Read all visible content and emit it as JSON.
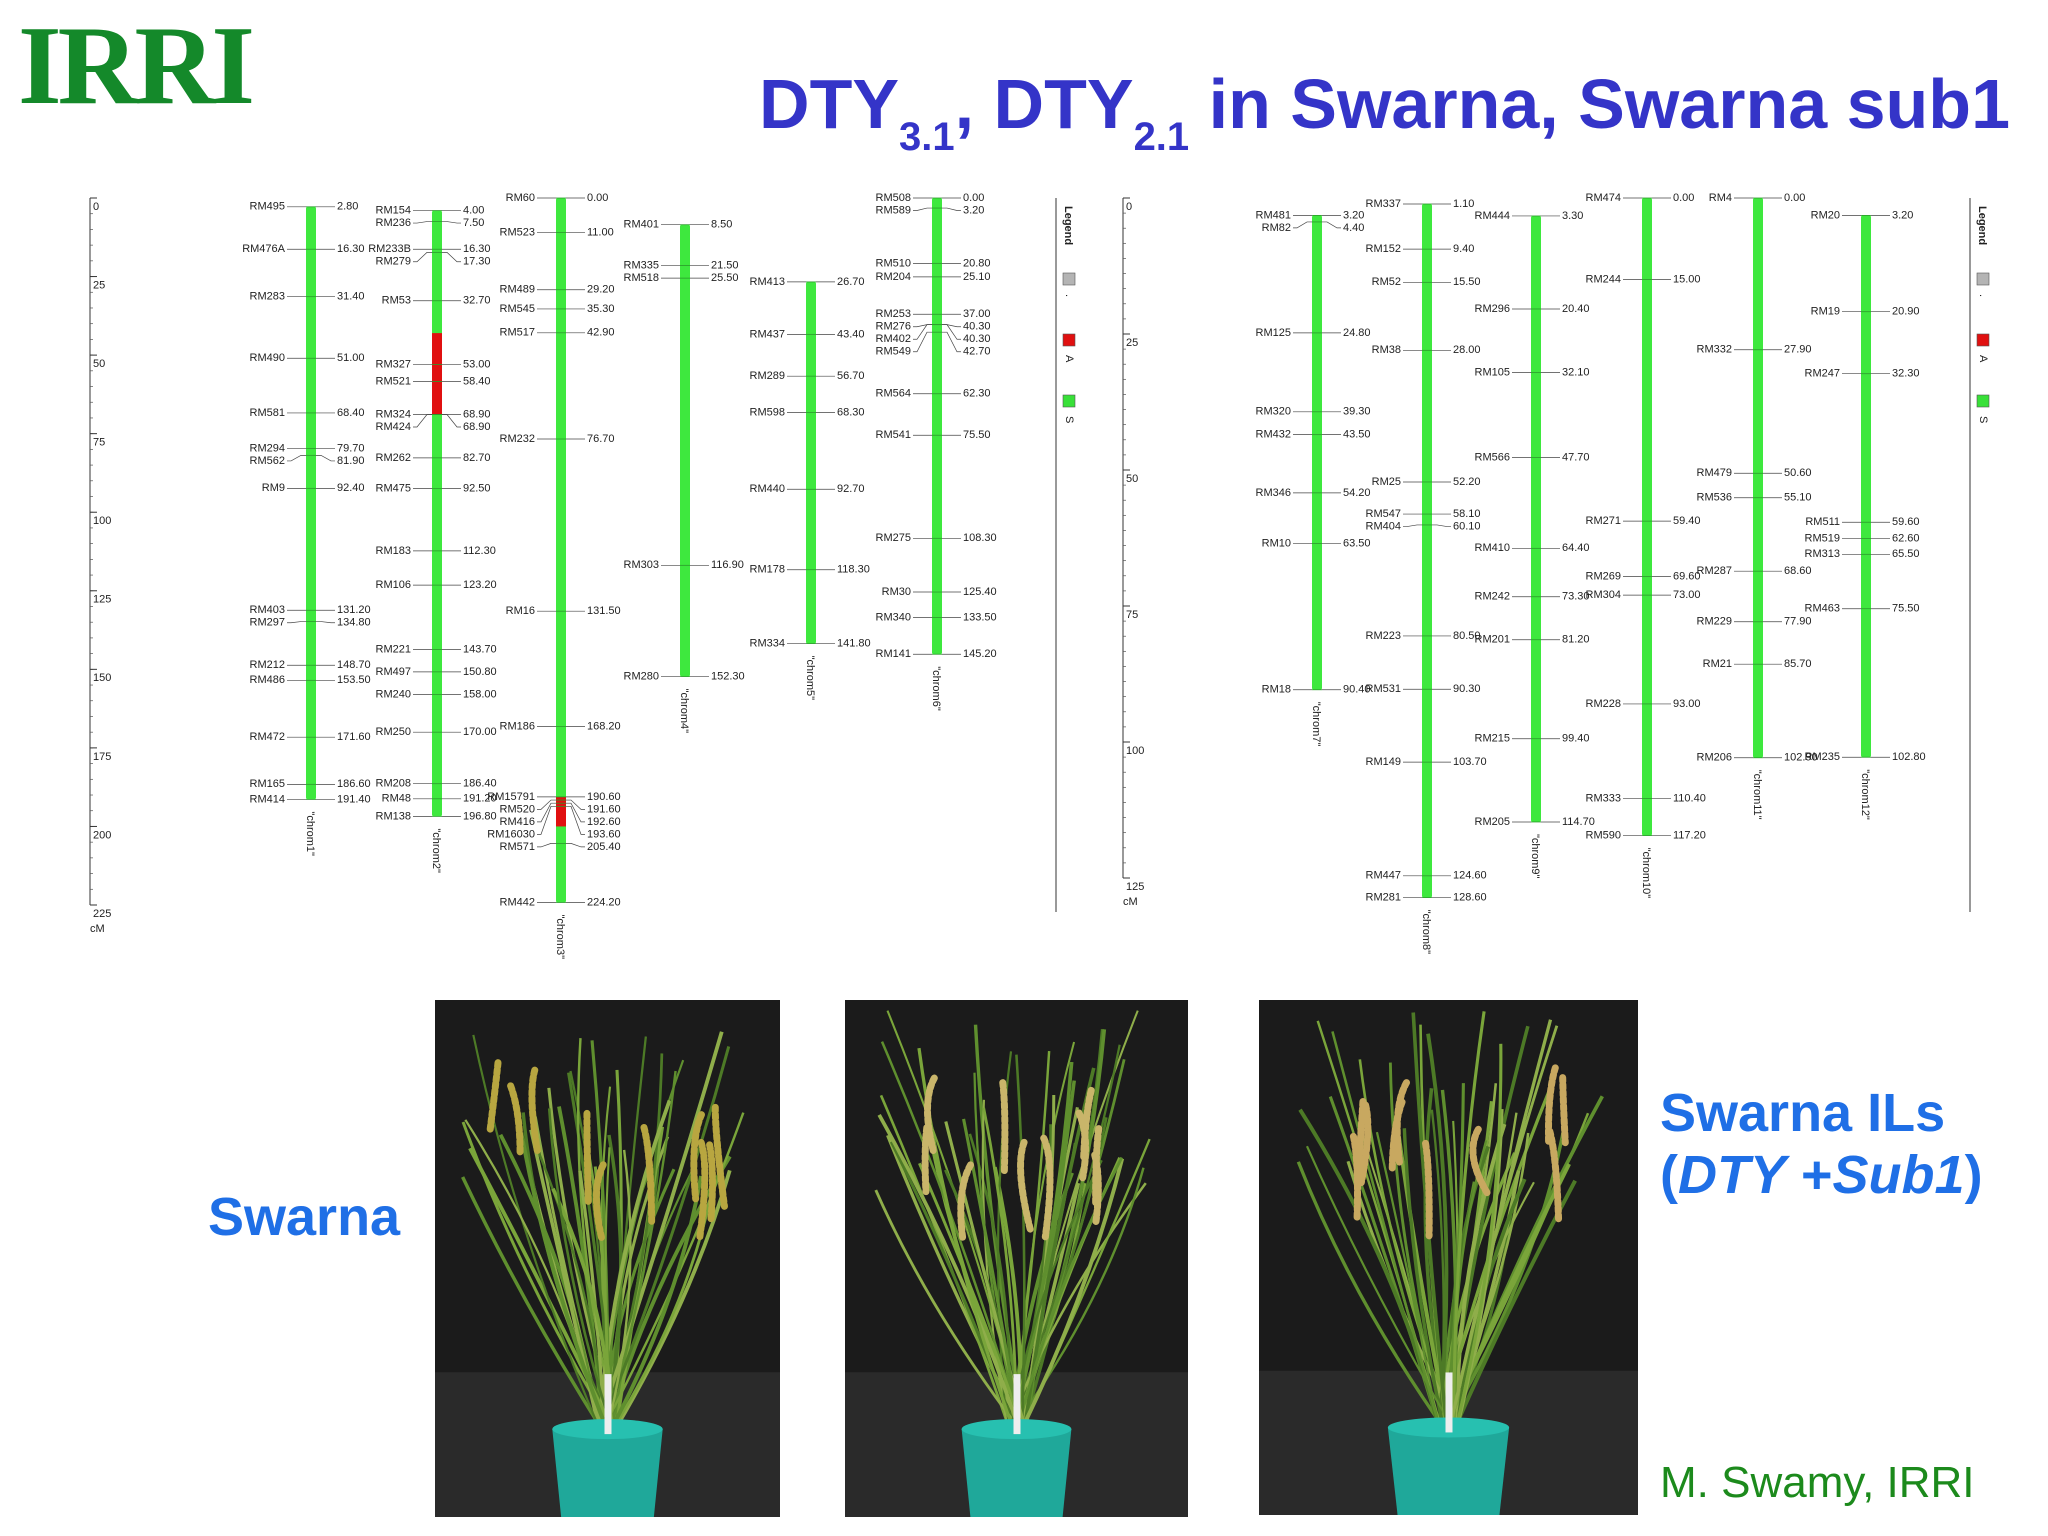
{
  "logo": "IRRI",
  "title": {
    "part1": "DTY",
    "sub1": "3.1",
    "part2": ", DTY",
    "sub2": "2.1",
    "part3": " in Swarna, Swarna sub1"
  },
  "maps": [
    {
      "lim": [
        0,
        225
      ],
      "ticks": [
        0,
        25,
        50,
        75,
        100,
        125,
        150,
        175,
        200,
        225
      ],
      "unit": "cM",
      "chromosomes": [
        {
          "label": "\"chrom1\"",
          "markers": [
            [
              "RM495",
              "2.80"
            ],
            [
              "RM476A",
              "16.30"
            ],
            [
              "RM283",
              "31.40"
            ],
            [
              "RM490",
              "51.00"
            ],
            [
              "RM581",
              "68.40"
            ],
            [
              "RM294",
              "79.70"
            ],
            [
              "RM562",
              "81.90"
            ],
            [
              "RM9",
              "92.40"
            ],
            [
              "RM403",
              "131.20"
            ],
            [
              "RM297",
              "134.80"
            ],
            [
              "RM212",
              "148.70"
            ],
            [
              "RM486",
              "153.50"
            ],
            [
              "RM472",
              "171.60"
            ],
            [
              "RM165",
              "186.60"
            ],
            [
              "RM414",
              "191.40"
            ]
          ],
          "segments": []
        },
        {
          "label": "\"chrom2\"",
          "markers": [
            [
              "RM154",
              "4.00"
            ],
            [
              "RM236",
              "7.50"
            ],
            [
              "RM233B",
              "16.30"
            ],
            [
              "RM279",
              "17.30"
            ],
            [
              "RM53",
              "32.70"
            ],
            [
              "RM327",
              "53.00"
            ],
            [
              "RM521",
              "58.40"
            ],
            [
              "RM324",
              "68.90"
            ],
            [
              "RM424",
              "68.90"
            ],
            [
              "RM262",
              "82.70"
            ],
            [
              "RM475",
              "92.50"
            ],
            [
              "RM183",
              "112.30"
            ],
            [
              "RM106",
              "123.20"
            ],
            [
              "RM221",
              "143.70"
            ],
            [
              "RM497",
              "150.80"
            ],
            [
              "RM240",
              "158.00"
            ],
            [
              "RM250",
              "170.00"
            ],
            [
              "RM208",
              "186.40"
            ],
            [
              "RM48",
              "191.20"
            ],
            [
              "RM138",
              "196.80"
            ]
          ],
          "segments": [
            {
              "from": 43,
              "to": 69
            }
          ]
        },
        {
          "label": "\"chrom3\"",
          "markers": [
            [
              "RM60",
              "0.00"
            ],
            [
              "RM523",
              "11.00"
            ],
            [
              "RM489",
              "29.20"
            ],
            [
              "RM545",
              "35.30"
            ],
            [
              "RM517",
              "42.90"
            ],
            [
              "RM232",
              "76.70"
            ],
            [
              "RM16",
              "131.50"
            ],
            [
              "RM186",
              "168.20"
            ],
            [
              "RM15791",
              "190.60"
            ],
            [
              "RM520",
              "191.60"
            ],
            [
              "RM416",
              "192.60"
            ],
            [
              "RM16030",
              "193.60"
            ],
            [
              "RM571",
              "205.40"
            ],
            [
              "RM442",
              "224.20"
            ]
          ],
          "segments": [
            {
              "from": 190.5,
              "to": 200
            }
          ]
        },
        {
          "label": "\"chrom4\"",
          "markers": [
            [
              "RM401",
              "8.50"
            ],
            [
              "RM335",
              "21.50"
            ],
            [
              "RM518",
              "25.50"
            ],
            [
              "RM303",
              "116.90"
            ],
            [
              "RM280",
              "152.30"
            ]
          ],
          "segments": []
        },
        {
          "label": "\"chrom5\"",
          "markers": [
            [
              "RM413",
              "26.70"
            ],
            [
              "RM437",
              "43.40"
            ],
            [
              "RM289",
              "56.70"
            ],
            [
              "RM598",
              "68.30"
            ],
            [
              "RM440",
              "92.70"
            ],
            [
              "RM178",
              "118.30"
            ],
            [
              "RM334",
              "141.80"
            ]
          ],
          "segments": []
        },
        {
          "label": "\"chrom6\"",
          "markers": [
            [
              "RM508",
              "0.00"
            ],
            [
              "RM589",
              "3.20"
            ],
            [
              "RM510",
              "20.80"
            ],
            [
              "RM204",
              "25.10"
            ],
            [
              "RM253",
              "37.00"
            ],
            [
              "RM276",
              "40.30"
            ],
            [
              "RM402",
              "40.30"
            ],
            [
              "RM549",
              "42.70"
            ],
            [
              "RM564",
              "62.30"
            ],
            [
              "RM541",
              "75.50"
            ],
            [
              "RM275",
              "108.30"
            ],
            [
              "RM30",
              "125.40"
            ],
            [
              "RM340",
              "133.50"
            ],
            [
              "RM141",
              "145.20"
            ]
          ],
          "segments": []
        }
      ],
      "legend": {
        "title": "Legend",
        "items": [
          {
            "label": ".",
            "color": "#b4b4b4"
          },
          {
            "label": "A",
            "color": "#e01010"
          },
          {
            "label": "S",
            "color": "#38e038"
          }
        ]
      }
    },
    {
      "lim": [
        0,
        125
      ],
      "ticks": [
        0,
        25,
        50,
        75,
        100,
        125
      ],
      "unit": "cM",
      "chromosomes": [
        {
          "label": "\"chrom7\"",
          "markers": [
            [
              "RM481",
              "3.20"
            ],
            [
              "RM82",
              "4.40"
            ],
            [
              "RM125",
              "24.80"
            ],
            [
              "RM320",
              "39.30"
            ],
            [
              "RM432",
              "43.50"
            ],
            [
              "RM346",
              "54.20"
            ],
            [
              "RM10",
              "63.50"
            ],
            [
              "RM18",
              "90.40"
            ]
          ],
          "segments": []
        },
        {
          "label": "\"chrom8\"",
          "markers": [
            [
              "RM337",
              "1.10"
            ],
            [
              "RM152",
              "9.40"
            ],
            [
              "RM52",
              "15.50"
            ],
            [
              "RM38",
              "28.00"
            ],
            [
              "RM25",
              "52.20"
            ],
            [
              "RM547",
              "58.10"
            ],
            [
              "RM404",
              "60.10"
            ],
            [
              "RM223",
              "80.50"
            ],
            [
              "RM531",
              "90.30"
            ],
            [
              "RM149",
              "103.70"
            ],
            [
              "RM447",
              "124.60"
            ],
            [
              "RM281",
              "128.60"
            ]
          ],
          "segments": []
        },
        {
          "label": "\"chrom9\"",
          "markers": [
            [
              "RM444",
              "3.30"
            ],
            [
              "RM296",
              "20.40"
            ],
            [
              "RM105",
              "32.10"
            ],
            [
              "RM566",
              "47.70"
            ],
            [
              "RM410",
              "64.40"
            ],
            [
              "RM242",
              "73.30"
            ],
            [
              "RM201",
              "81.20"
            ],
            [
              "RM215",
              "99.40"
            ],
            [
              "RM205",
              "114.70"
            ]
          ],
          "segments": []
        },
        {
          "label": "\"chrom10\"",
          "markers": [
            [
              "RM474",
              "0.00"
            ],
            [
              "RM244",
              "15.00"
            ],
            [
              "RM271",
              "59.40"
            ],
            [
              "RM269",
              "69.60"
            ],
            [
              "RM304",
              "73.00"
            ],
            [
              "RM228",
              "93.00"
            ],
            [
              "RM333",
              "110.40"
            ],
            [
              "RM590",
              "117.20"
            ]
          ],
          "segments": []
        },
        {
          "label": "\"chrom11\"",
          "markers": [
            [
              "RM4",
              "0.00"
            ],
            [
              "RM332",
              "27.90"
            ],
            [
              "RM479",
              "50.60"
            ],
            [
              "RM536",
              "55.10"
            ],
            [
              "RM287",
              "68.60"
            ],
            [
              "RM229",
              "77.90"
            ],
            [
              "RM21",
              "85.70"
            ],
            [
              "RM206",
              "102.90"
            ]
          ],
          "segments": []
        },
        {
          "label": "\"chrom12\"",
          "markers": [
            [
              "RM20",
              "3.20"
            ],
            [
              "RM19",
              "20.90"
            ],
            [
              "RM247",
              "32.30"
            ],
            [
              "RM511",
              "59.60"
            ],
            [
              "RM519",
              "62.60"
            ],
            [
              "RM313",
              "65.50"
            ],
            [
              "RM463",
              "75.50"
            ],
            [
              "RM235",
              "102.80"
            ]
          ],
          "segments": []
        }
      ],
      "legend": {
        "title": "Legend",
        "items": [
          {
            "label": ".",
            "color": "#b4b4b4"
          },
          {
            "label": "A",
            "color": "#e01010"
          },
          {
            "label": "S",
            "color": "#38e038"
          }
        ]
      }
    }
  ],
  "labels": {
    "swarna": "Swarna",
    "ils": {
      "line1": "Swarna ILs",
      "line2": [
        "(",
        "DTY",
        " +",
        "Sub1",
        ")"
      ]
    }
  },
  "credit": "M. Swamy, IRRI"
}
